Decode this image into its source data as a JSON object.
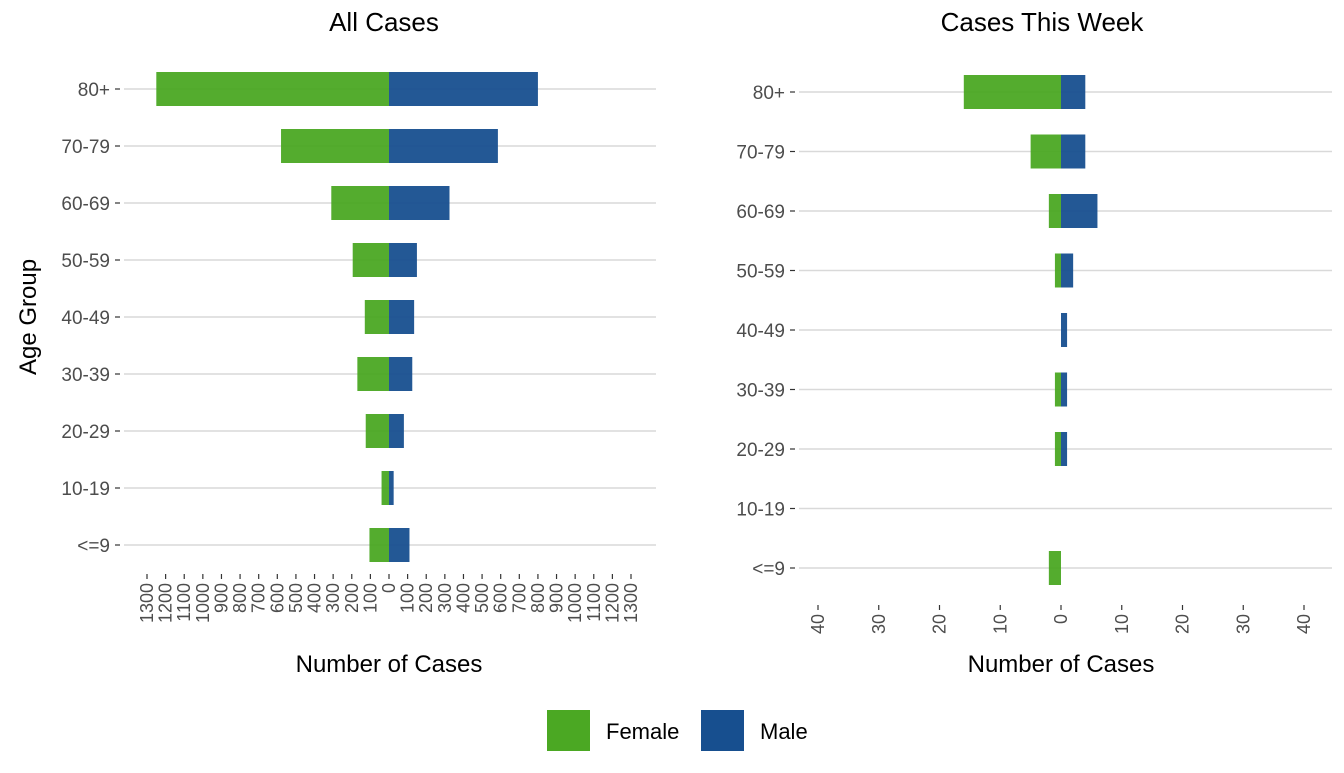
{
  "chart_data": [
    {
      "type": "bar",
      "orientation": "horizontal",
      "style": "population-pyramid",
      "title": "All Cases",
      "xlabel": "Number of Cases",
      "ylabel": "Age Group",
      "xlim": [
        -1300,
        1300
      ],
      "x_ticks": [
        -1300,
        -1200,
        -1100,
        -1000,
        -900,
        -800,
        -700,
        -600,
        -500,
        -400,
        -300,
        -200,
        -100,
        0,
        100,
        200,
        300,
        400,
        500,
        600,
        700,
        800,
        900,
        1000,
        1100,
        1200,
        1300
      ],
      "x_tick_labels": [
        "1300",
        "1200",
        "1100",
        "1000",
        "900",
        "800",
        "700",
        "600",
        "500",
        "400",
        "300",
        "200",
        "100",
        "0",
        "100",
        "200",
        "300",
        "400",
        "500",
        "600",
        "700",
        "800",
        "900",
        "1000",
        "1100",
        "1200",
        "1300"
      ],
      "categories": [
        "80+",
        "70-79",
        "60-69",
        "50-59",
        "40-49",
        "30-39",
        "20-29",
        "10-19",
        "<=9"
      ],
      "series": [
        {
          "name": "Female",
          "values": [
            1250,
            580,
            310,
            195,
            130,
            170,
            125,
            40,
            105
          ]
        },
        {
          "name": "Male",
          "values": [
            800,
            585,
            325,
            150,
            135,
            125,
            80,
            25,
            110
          ]
        }
      ],
      "grid": "horizontal"
    },
    {
      "type": "bar",
      "orientation": "horizontal",
      "style": "population-pyramid",
      "title": "Cases This Week",
      "xlabel": "Number of Cases",
      "ylabel": "",
      "xlim": [
        -40,
        40
      ],
      "x_ticks": [
        -40,
        -30,
        -20,
        -10,
        0,
        10,
        20,
        30,
        40
      ],
      "x_tick_labels": [
        "40",
        "30",
        "20",
        "10",
        "0",
        "10",
        "20",
        "30",
        "40"
      ],
      "categories": [
        "80+",
        "70-79",
        "60-69",
        "50-59",
        "40-49",
        "30-39",
        "20-29",
        "10-19",
        "<=9"
      ],
      "series": [
        {
          "name": "Female",
          "values": [
            16,
            5,
            2,
            1,
            0,
            1,
            1,
            0,
            2
          ]
        },
        {
          "name": "Male",
          "values": [
            4,
            4,
            6,
            2,
            1,
            1,
            1,
            0,
            0
          ]
        }
      ],
      "grid": "horizontal"
    }
  ],
  "legend": {
    "position": "bottom",
    "items": [
      {
        "name": "Female",
        "color": "#4ba823"
      },
      {
        "name": "Male",
        "color": "#174f8f"
      }
    ]
  },
  "colors": {
    "female": "#4ba823",
    "male": "#174f8f",
    "grid": "#d9d9d9"
  }
}
